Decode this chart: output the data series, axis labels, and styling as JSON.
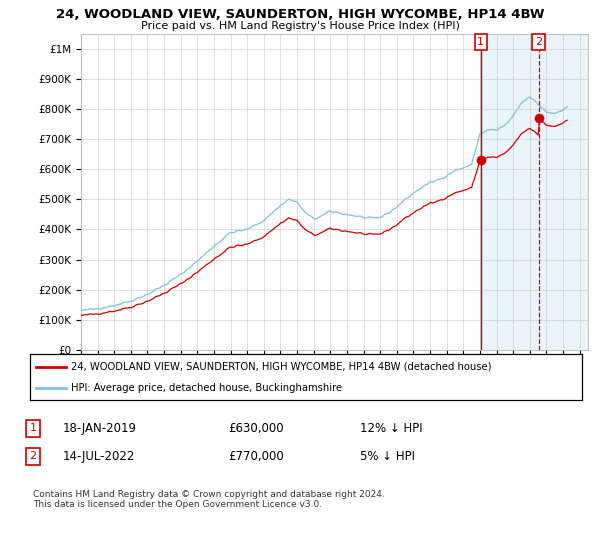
{
  "title": "24, WOODLAND VIEW, SAUNDERTON, HIGH WYCOMBE, HP14 4BW",
  "subtitle": "Price paid vs. HM Land Registry's House Price Index (HPI)",
  "legend_line1": "24, WOODLAND VIEW, SAUNDERTON, HIGH WYCOMBE, HP14 4BW (detached house)",
  "legend_line2": "HPI: Average price, detached house, Buckinghamshire",
  "footnote": "Contains HM Land Registry data © Crown copyright and database right 2024.\nThis data is licensed under the Open Government Licence v3.0.",
  "sale1_date": "18-JAN-2019",
  "sale1_price": 630000,
  "sale1_label": "12% ↓ HPI",
  "sale1_x": 2019.05,
  "sale2_date": "14-JUL-2022",
  "sale2_price": 770000,
  "sale2_label": "5% ↓ HPI",
  "sale2_x": 2022.54,
  "hpi_color": "#7fbfdf",
  "hpi_shade_color": "#d6eaf8",
  "price_color": "#cc0000",
  "marker_color": "#cc0000",
  "vline1_color": "#cc0000",
  "vline2_color": "#cc0000",
  "background_color": "#ffffff",
  "grid_color": "#d0d0d0",
  "ylim": [
    0,
    1050000
  ],
  "xlim_start": 1995,
  "xlim_end": 2025.5,
  "yticks": [
    0,
    100000,
    200000,
    300000,
    400000,
    500000,
    600000,
    700000,
    800000,
    900000,
    1000000
  ],
  "ytick_labels": [
    "£0",
    "£100K",
    "£200K",
    "£300K",
    "£400K",
    "£500K",
    "£600K",
    "£700K",
    "£800K",
    "£900K",
    "£1M"
  ],
  "xticks": [
    1995,
    1996,
    1997,
    1998,
    1999,
    2000,
    2001,
    2002,
    2003,
    2004,
    2005,
    2006,
    2007,
    2008,
    2009,
    2010,
    2011,
    2012,
    2013,
    2014,
    2015,
    2016,
    2017,
    2018,
    2019,
    2020,
    2021,
    2022,
    2023,
    2024,
    2025
  ],
  "sale1_hpi_ratio": 0.88,
  "sale2_hpi_ratio": 0.95
}
